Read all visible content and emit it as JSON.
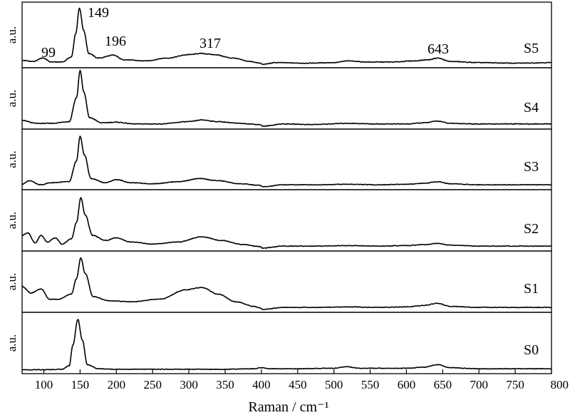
{
  "chart_data": {
    "type": "line",
    "xlabel": "Raman / cm⁻¹",
    "ylabel": "a.u.",
    "xlim": [
      70,
      800
    ],
    "xticks": [
      100,
      150,
      200,
      250,
      300,
      350,
      400,
      450,
      500,
      550,
      600,
      650,
      700,
      750,
      800
    ],
    "xtick_labels": [
      "100",
      "150",
      "200",
      "250",
      "300",
      "350",
      "400",
      "450",
      "500",
      "550",
      "600",
      "650",
      "700",
      "750",
      "800"
    ],
    "ylim": [
      0,
      1
    ],
    "grid": false,
    "layout": "stacked-panels",
    "series": [
      {
        "name": "S5",
        "x": [
          70,
          85,
          99,
          110,
          125,
          138,
          144,
          149,
          155,
          162,
          175,
          196,
          210,
          240,
          270,
          300,
          317,
          335,
          360,
          385,
          398,
          402,
          420,
          460,
          500,
          520,
          545,
          580,
          610,
          630,
          643,
          660,
          700,
          750,
          800
        ],
        "y": [
          0.08,
          0.06,
          0.12,
          0.05,
          0.05,
          0.14,
          0.55,
          1.0,
          0.6,
          0.2,
          0.12,
          0.17,
          0.09,
          0.07,
          0.12,
          0.18,
          0.2,
          0.18,
          0.12,
          0.06,
          0.03,
          0.01,
          0.04,
          0.03,
          0.04,
          0.07,
          0.05,
          0.05,
          0.07,
          0.09,
          0.12,
          0.06,
          0.04,
          0.03,
          0.04
        ]
      },
      {
        "name": "S4",
        "x": [
          70,
          90,
          110,
          135,
          145,
          150,
          155,
          163,
          180,
          200,
          225,
          260,
          300,
          318,
          340,
          370,
          398,
          402,
          430,
          470,
          520,
          560,
          600,
          625,
          643,
          660,
          700,
          750,
          800
        ],
        "y": [
          0.1,
          0.05,
          0.05,
          0.08,
          0.5,
          0.98,
          0.6,
          0.15,
          0.06,
          0.07,
          0.04,
          0.04,
          0.08,
          0.11,
          0.08,
          0.05,
          0.03,
          0.0,
          0.04,
          0.03,
          0.05,
          0.04,
          0.04,
          0.06,
          0.09,
          0.05,
          0.04,
          0.04,
          0.04
        ]
      },
      {
        "name": "S3",
        "x": [
          70,
          80,
          95,
          110,
          135,
          145,
          150,
          156,
          165,
          185,
          200,
          220,
          250,
          285,
          315,
          340,
          370,
          398,
          402,
          430,
          470,
          520,
          560,
          600,
          625,
          643,
          660,
          700,
          750,
          800
        ],
        "y": [
          0.05,
          0.12,
          0.04,
          0.08,
          0.1,
          0.5,
          0.98,
          0.62,
          0.16,
          0.08,
          0.14,
          0.08,
          0.06,
          0.1,
          0.16,
          0.12,
          0.06,
          0.03,
          0.0,
          0.04,
          0.04,
          0.05,
          0.04,
          0.05,
          0.07,
          0.1,
          0.06,
          0.04,
          0.04,
          0.04
        ]
      },
      {
        "name": "S2",
        "x": [
          70,
          78,
          88,
          96,
          105,
          116,
          125,
          138,
          145,
          151,
          157,
          167,
          185,
          200,
          220,
          250,
          285,
          318,
          345,
          375,
          398,
          402,
          430,
          470,
          520,
          560,
          600,
          625,
          643,
          660,
          700,
          750,
          800
        ],
        "y": [
          0.25,
          0.3,
          0.1,
          0.25,
          0.12,
          0.2,
          0.08,
          0.18,
          0.5,
          0.98,
          0.65,
          0.25,
          0.15,
          0.2,
          0.12,
          0.08,
          0.12,
          0.22,
          0.15,
          0.07,
          0.03,
          0.0,
          0.04,
          0.04,
          0.05,
          0.04,
          0.05,
          0.07,
          0.09,
          0.06,
          0.04,
          0.04,
          0.04
        ]
      },
      {
        "name": "S1",
        "x": [
          70,
          82,
          96,
          108,
          120,
          138,
          145,
          151,
          157,
          168,
          190,
          220,
          260,
          295,
          318,
          340,
          365,
          390,
          398,
          402,
          430,
          470,
          520,
          560,
          600,
          625,
          643,
          660,
          700,
          750,
          800
        ],
        "y": [
          0.45,
          0.32,
          0.4,
          0.2,
          0.2,
          0.3,
          0.6,
          1.0,
          0.7,
          0.25,
          0.17,
          0.15,
          0.2,
          0.38,
          0.43,
          0.3,
          0.15,
          0.06,
          0.03,
          0.0,
          0.04,
          0.04,
          0.05,
          0.04,
          0.05,
          0.08,
          0.12,
          0.06,
          0.04,
          0.04,
          0.04
        ]
      },
      {
        "name": "S0",
        "x": [
          70,
          100,
          125,
          135,
          140,
          147,
          153,
          160,
          175,
          200,
          250,
          300,
          350,
          390,
          400,
          410,
          450,
          500,
          518,
          535,
          560,
          600,
          625,
          643,
          660,
          700,
          750,
          800
        ],
        "y": [
          0.02,
          0.02,
          0.03,
          0.1,
          0.5,
          1.0,
          0.6,
          0.12,
          0.04,
          0.03,
          0.03,
          0.03,
          0.03,
          0.04,
          0.06,
          0.04,
          0.04,
          0.05,
          0.08,
          0.05,
          0.05,
          0.05,
          0.07,
          0.12,
          0.06,
          0.04,
          0.04,
          0.04
        ]
      }
    ],
    "annotations": [
      "99",
      "149",
      "196",
      "317",
      "643"
    ]
  },
  "annotation_positions": [
    99,
    149,
    196,
    317,
    643
  ]
}
